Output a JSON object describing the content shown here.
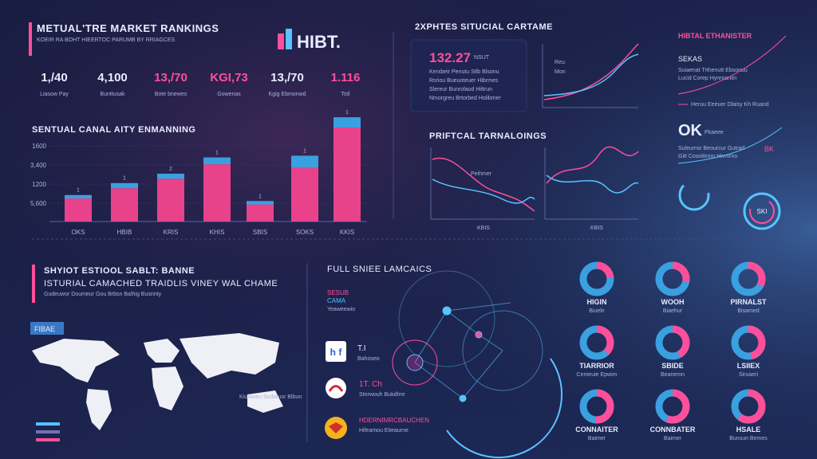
{
  "header": {
    "title": "METUAL'TRE MARKET RANKINGS",
    "subtitle": "KOEIR RA BOHT HIEERTOC PARUMB BY RRIAGCES",
    "logo": "HIBT."
  },
  "stats": [
    {
      "value": "1,/40",
      "label": "Liasow Pay"
    },
    {
      "value": "4,100",
      "label": "Bunttusak"
    },
    {
      "value": "13,/70",
      "label": "Bote bnewes"
    },
    {
      "value": "KGI,73",
      "label": "Gowenas"
    },
    {
      "value": "13,/70",
      "label": "Kgig Ebmonwd"
    },
    {
      "value": "1.116",
      "label": "Totl"
    }
  ],
  "bar_panel": {
    "title": "SENTUAL CANAL AITY ENMANNING",
    "axis_labels": [
      "1600",
      "3,400",
      "1200",
      "5,600"
    ],
    "categories": [
      "OKS",
      "HBIB",
      "KRIS",
      "KHIS",
      "SBIS",
      "SOKS",
      "KKIS"
    ],
    "values": [
      27,
      39,
      50,
      67,
      20,
      63,
      110
    ],
    "caps": [
      4,
      6,
      6,
      8,
      4,
      14,
      12
    ],
    "top_labels": [
      "1",
      "1",
      "2",
      "1",
      "1",
      "1",
      "1"
    ],
    "ylim": [
      0,
      110
    ]
  },
  "right_top": {
    "title": "2XPHTES SITUCIAL CARTAME",
    "figure": "132.27",
    "figure_note": "NSUT",
    "lines": [
      "Kerxbeir Penutu Stlb Blsonu",
      "Rsriou Bueuoteuer Hibrmes",
      "Slereur Bunrolaud Hittrun",
      "Nmorgreu Brtorbed Holibmer"
    ],
    "legend": [
      "Reu",
      "Mon"
    ],
    "corner_title": "HIBTAL ETHANISTER",
    "corner_sub": "SEKAS",
    "corner_lines": [
      "Suiaenat Trthenutt Ebsonuu",
      "Lucid Corep Hynroaniin"
    ],
    "corner_legend": "Heruu Eeeuer Dlaisy Kh Ruand"
  },
  "mid_right": {
    "title": "PRIFTCAL TARNALOINGS",
    "label1": "Peihmer",
    "axis1": "KBIS",
    "axis2": "KBIS",
    "big": "OK",
    "big_sub": "Pkaeee",
    "lines": [
      "Suleumsr Beourcur Gutrad",
      "Gitt Cosoitirom Hivmrno"
    ],
    "tag": "BK",
    "gauge": "SKI"
  },
  "bottom_left": {
    "title": "SHYIOT ESTIOOL SABLT: BANNE",
    "subtitle": "ISTURIAL CAMACHED  TRAIDLIS VINEY WAL CHAME",
    "note": "Gudeuwor Doumeur Gou Brbsn Balhig Busnnty",
    "tag": "FIBAE",
    "map_note": "Kiukiweu Surbousr Blbun"
  },
  "bottom_mid": {
    "title": "FULL SNIEE LAMCAICS",
    "label": "SESUB",
    "label2": "CAMA",
    "label3": "Yeaweewio",
    "items": [
      {
        "icon": "h f",
        "title": "T.I",
        "sub": "Bahoseo"
      },
      {
        "icon": "",
        "title": "1T. Ch",
        "sub": "Stnrwouh Bukdhre"
      },
      {
        "icon": "",
        "title": "HDERNIMRCBAUCHEN",
        "sub": "Hifeamou Eiteaurne"
      }
    ]
  },
  "donuts": [
    {
      "title": "HIGIN",
      "sub": "Biuelir"
    },
    {
      "title": "WOOH",
      "sub": "Biaehur"
    },
    {
      "title": "PIRNALST",
      "sub": "Bisamed"
    },
    {
      "title": "TIARRIOR",
      "sub": "Cemeuie Epwim"
    },
    {
      "title": "SBIDE",
      "sub": "Beanemn"
    },
    {
      "title": "LSIIEX",
      "sub": "Siruaeri"
    },
    {
      "title": "CONNAITER",
      "sub": "Baimer"
    },
    {
      "title": "CONNBATER",
      "sub": "Baimer"
    },
    {
      "title": "HSALE",
      "sub": "Bunsun Bemes"
    }
  ]
}
